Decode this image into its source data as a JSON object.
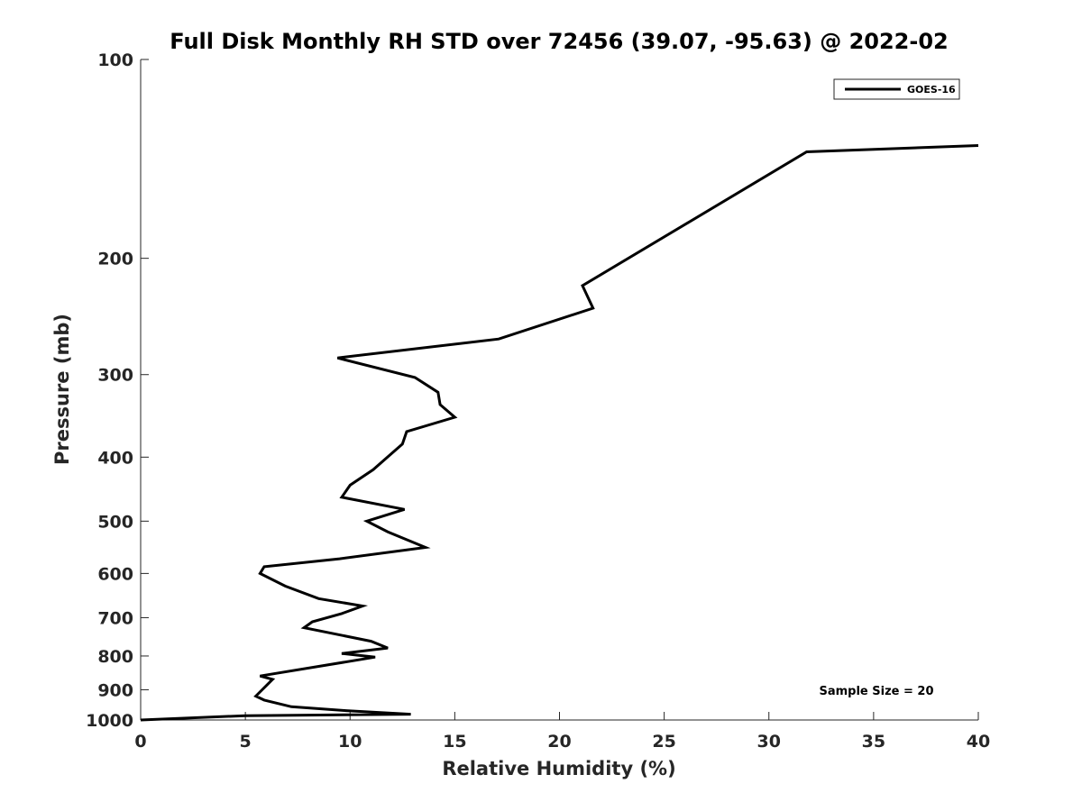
{
  "chart_data": {
    "type": "line",
    "title": "Full Disk Monthly RH STD over 72456 (39.07, -95.63) @ 2022-02",
    "xlabel": "Relative Humidity (%)",
    "ylabel": "Pressure (mb)",
    "xlim": [
      0,
      40
    ],
    "ylim": [
      100,
      1000
    ],
    "y_scale": "log",
    "y_reversed": true,
    "x_ticks": [
      "0",
      "5",
      "10",
      "15",
      "20",
      "25",
      "30",
      "35",
      "40"
    ],
    "y_ticks": [
      "100",
      "200",
      "300",
      "400",
      "500",
      "600",
      "700",
      "800",
      "900",
      "1000"
    ],
    "grid": false,
    "legend_position": "top-right",
    "series": [
      {
        "name": "GOES-16",
        "color": "#000000",
        "points": [
          [
            40.0,
            135
          ],
          [
            31.8,
            138
          ],
          [
            21.1,
            220
          ],
          [
            21.6,
            238
          ],
          [
            17.1,
            265
          ],
          [
            9.4,
            283
          ],
          [
            13.1,
            303
          ],
          [
            14.2,
            319
          ],
          [
            14.3,
            333
          ],
          [
            15.0,
            348
          ],
          [
            12.7,
            366
          ],
          [
            12.5,
            382
          ],
          [
            11.1,
            418
          ],
          [
            10.0,
            441
          ],
          [
            9.6,
            460
          ],
          [
            12.6,
            480
          ],
          [
            10.8,
            500
          ],
          [
            11.8,
            519
          ],
          [
            13.6,
            548
          ],
          [
            9.5,
            570
          ],
          [
            5.9,
            586
          ],
          [
            5.7,
            600
          ],
          [
            6.9,
            627
          ],
          [
            8.5,
            655
          ],
          [
            10.6,
            672
          ],
          [
            9.6,
            690
          ],
          [
            8.2,
            710
          ],
          [
            7.8,
            725
          ],
          [
            11.0,
            760
          ],
          [
            11.8,
            778
          ],
          [
            9.6,
            793
          ],
          [
            11.2,
            803
          ],
          [
            5.7,
            858
          ],
          [
            6.3,
            868
          ],
          [
            5.8,
            900
          ],
          [
            5.5,
            920
          ],
          [
            5.9,
            933
          ],
          [
            7.2,
            955
          ],
          [
            9.8,
            968
          ],
          [
            12.9,
            980
          ],
          [
            5.0,
            985
          ],
          [
            0.0,
            1000
          ]
        ]
      }
    ],
    "annotation": "Sample Size = 20"
  }
}
